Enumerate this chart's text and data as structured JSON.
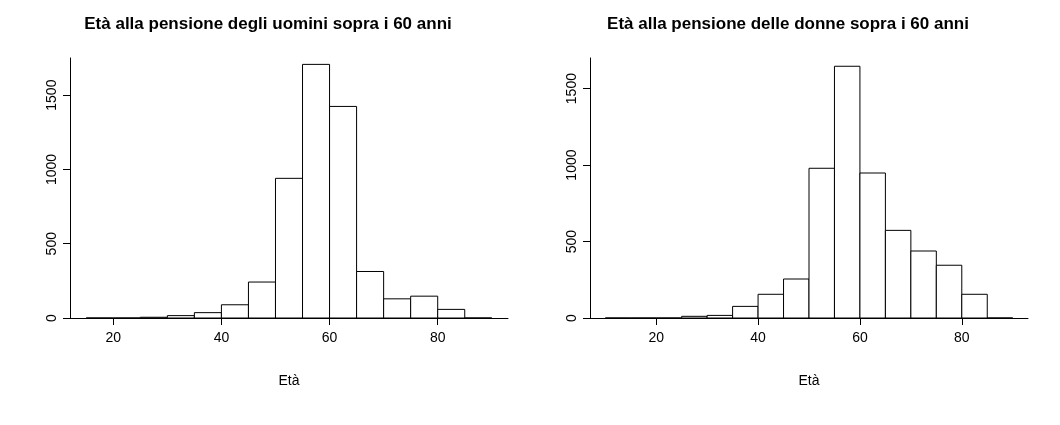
{
  "chart_data": [
    {
      "type": "histogram",
      "title": "Età alla pensione degli uomini sopra i 60 anni",
      "xlabel": "Età",
      "bins": [
        15,
        20,
        25,
        30,
        35,
        40,
        45,
        50,
        55,
        60,
        65,
        70,
        75,
        80,
        85,
        90
      ],
      "values": [
        0,
        0,
        5,
        16,
        36,
        89,
        242,
        940,
        1707,
        1424,
        313,
        129,
        147,
        58,
        0
      ],
      "color": "#ffffff",
      "xlim": [
        12,
        93
      ],
      "xticks": [
        20,
        40,
        60,
        80
      ],
      "ylim": [
        0,
        1750
      ],
      "yticks": [
        0,
        500,
        1000,
        1500
      ],
      "grid": false
    },
    {
      "type": "histogram",
      "title": "Età alla pensione delle donne sopra i 60 anni",
      "xlabel": "Età",
      "bins": [
        10,
        15,
        20,
        25,
        30,
        35,
        40,
        45,
        50,
        55,
        60,
        65,
        70,
        75,
        80,
        85,
        90
      ],
      "values": [
        0,
        0,
        0,
        11,
        17,
        76,
        155,
        255,
        979,
        1646,
        948,
        573,
        438,
        345,
        155,
        0
      ],
      "color": "#ffffff",
      "xlim": [
        7,
        93
      ],
      "xticks": [
        20,
        40,
        60,
        80
      ],
      "ylim": [
        0,
        1700
      ],
      "yticks": [
        0,
        500,
        1000,
        1500
      ],
      "grid": false
    }
  ]
}
